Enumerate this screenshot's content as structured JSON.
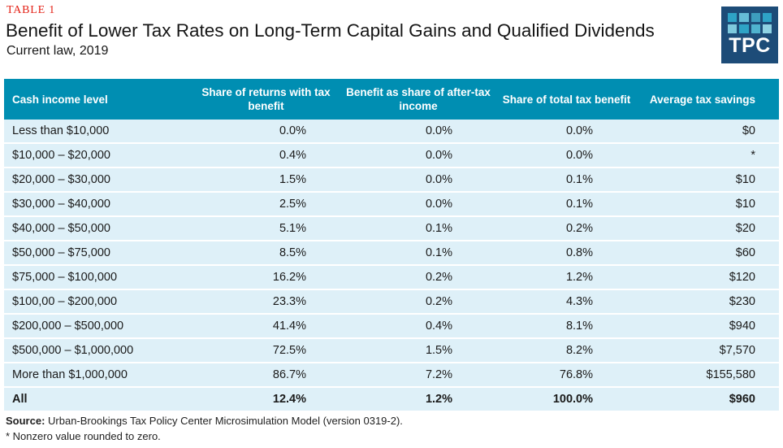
{
  "header": {
    "table_label": "TABLE 1",
    "title": "Benefit of Lower Tax Rates on Long-Term Capital Gains and Qualified Dividends",
    "subtitle": "Current law, 2019",
    "logo_text": "TPC"
  },
  "colors": {
    "accent_red": "#e42217",
    "header_teal": "#008eb2",
    "row_blue": "#def0f8",
    "logo_navy": "#1d4c78",
    "logo_square_palette": [
      "#2ea3c6",
      "#66bdd7",
      "#3d9dbe",
      "#2ea3c6",
      "#7ec9dd",
      "#2ea3c6",
      "#4fb3cf",
      "#8fd2e3"
    ]
  },
  "chart_data": {
    "type": "table",
    "title": "Benefit of Lower Tax Rates on Long-Term Capital Gains and Qualified Dividends",
    "subtitle": "Current law, 2019",
    "columns": [
      "Cash income level",
      "Share of returns with tax benefit",
      "Benefit as share of after-tax income",
      "Share of total tax benefit",
      "Average tax savings"
    ],
    "rows": [
      [
        "Less than $10,000",
        "0.0%",
        "0.0%",
        "0.0%",
        "$0"
      ],
      [
        "$10,000 – $20,000",
        "0.4%",
        "0.0%",
        "0.0%",
        "*"
      ],
      [
        "$20,000 – $30,000",
        "1.5%",
        "0.0%",
        "0.1%",
        "$10"
      ],
      [
        "$30,000 – $40,000",
        "2.5%",
        "0.0%",
        "0.1%",
        "$10"
      ],
      [
        "$40,000 – $50,000",
        "5.1%",
        "0.1%",
        "0.2%",
        "$20"
      ],
      [
        "$50,000 – $75,000",
        "8.5%",
        "0.1%",
        "0.8%",
        "$60"
      ],
      [
        "$75,000 – $100,000",
        "16.2%",
        "0.2%",
        "1.2%",
        "$120"
      ],
      [
        "$100,00 – $200,000",
        "23.3%",
        "0.2%",
        "4.3%",
        "$230"
      ],
      [
        "$200,000 – $500,000",
        "41.4%",
        "0.4%",
        "8.1%",
        "$940"
      ],
      [
        "$500,000 – $1,000,000",
        "72.5%",
        "1.5%",
        "8.2%",
        "$7,570"
      ],
      [
        "More than $1,000,000",
        "86.7%",
        "7.2%",
        "76.8%",
        "$155,580"
      ]
    ],
    "total_row": [
      "All",
      "12.4%",
      "1.2%",
      "100.0%",
      "$960"
    ]
  },
  "footer": {
    "source_label": "Source:",
    "source_text": " Urban-Brookings Tax Policy Center Microsimulation Model (version 0319-2).",
    "footnote": "* Nonzero value rounded to zero."
  }
}
